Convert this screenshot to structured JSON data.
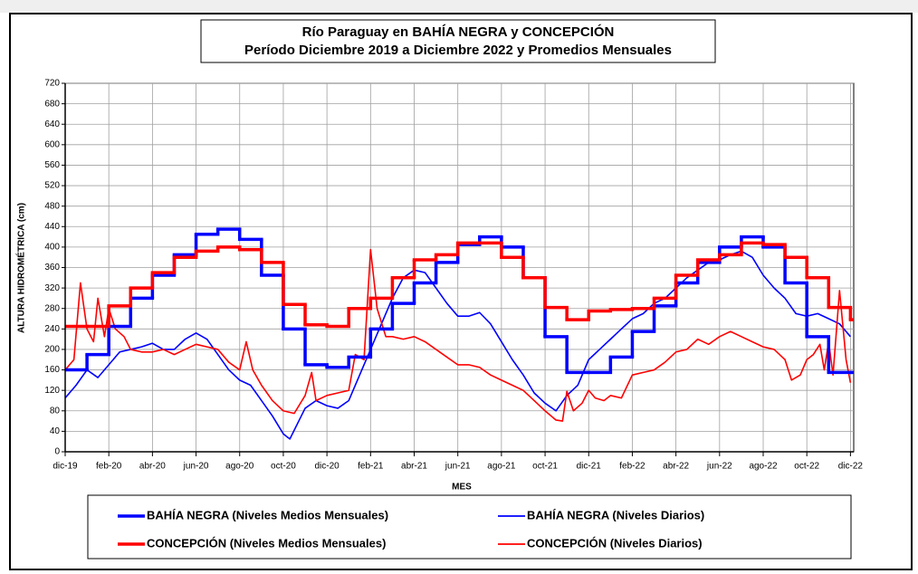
{
  "chart_data": {
    "type": "line",
    "title": "Río Paraguay en BAHÍA NEGRA y CONCEPCIÓN",
    "subtitle": "Período Diciembre 2019 a Diciembre 2022 y Promedios Mensuales",
    "x_label": "MES",
    "y_label": "ALTURA HIDROMÉTRICA (cm)",
    "xlim": [
      0,
      36.15
    ],
    "ylim": [
      0,
      720
    ],
    "xticks": [
      {
        "value": 0,
        "label": "dic-19"
      },
      {
        "value": 2,
        "label": "feb-20"
      },
      {
        "value": 4,
        "label": "abr-20"
      },
      {
        "value": 6,
        "label": "jun-20"
      },
      {
        "value": 8,
        "label": "ago-20"
      },
      {
        "value": 10,
        "label": "oct-20"
      },
      {
        "value": 12,
        "label": "dic-20"
      },
      {
        "value": 14,
        "label": "feb-21"
      },
      {
        "value": 16,
        "label": "abr-21"
      },
      {
        "value": 18,
        "label": "jun-21"
      },
      {
        "value": 20,
        "label": "ago-21"
      },
      {
        "value": 22,
        "label": "oct-21"
      },
      {
        "value": 24,
        "label": "dic-21"
      },
      {
        "value": 26,
        "label": "feb-22"
      },
      {
        "value": 28,
        "label": "abr-22"
      },
      {
        "value": 30,
        "label": "jun-22"
      },
      {
        "value": 32,
        "label": "ago-22"
      },
      {
        "value": 34,
        "label": "oct-22"
      },
      {
        "value": 36,
        "label": "dic-22"
      }
    ],
    "yticks": [
      0,
      40,
      80,
      120,
      160,
      200,
      240,
      280,
      320,
      360,
      400,
      440,
      480,
      520,
      560,
      600,
      640,
      680,
      720
    ],
    "grid": true,
    "series": [
      {
        "name": "BAHÍA NEGRA (Niveles Medios Mensuales)",
        "color": "#0000ff",
        "style": "step",
        "x": [
          0,
          1,
          2,
          3,
          4,
          5,
          6,
          7,
          8,
          9,
          10,
          11,
          12,
          13,
          14,
          15,
          16,
          17,
          18,
          19,
          20,
          21,
          22,
          23,
          24,
          25,
          26,
          27,
          28,
          29,
          30,
          31,
          32,
          33,
          34,
          35,
          36
        ],
        "values": [
          160,
          190,
          245,
          300,
          345,
          385,
          425,
          435,
          415,
          345,
          240,
          170,
          165,
          185,
          240,
          290,
          330,
          370,
          405,
          420,
          400,
          340,
          225,
          155,
          155,
          185,
          235,
          285,
          330,
          370,
          400,
          420,
          400,
          330,
          225,
          155,
          155
        ]
      },
      {
        "name": "BAHÍA NEGRA (Niveles Diarios)",
        "color": "#0000ff",
        "style": "line",
        "x": [
          0,
          0.5,
          1,
          1.5,
          2,
          2.5,
          3,
          3.5,
          4,
          4.5,
          5,
          5.5,
          6,
          6.5,
          7,
          7.5,
          8,
          8.5,
          9,
          9.5,
          10,
          10.3,
          11,
          11.5,
          12,
          12.5,
          13,
          13.5,
          14,
          14.5,
          15,
          15.5,
          16,
          16.5,
          17,
          17.5,
          18,
          18.5,
          19,
          19.5,
          20,
          20.5,
          21,
          21.5,
          22,
          22.5,
          23,
          23.5,
          24,
          24.5,
          25,
          25.5,
          26,
          26.5,
          27,
          27.5,
          28,
          28.5,
          29,
          29.5,
          30,
          30.5,
          31,
          31.5,
          32,
          32.5,
          33,
          33.5,
          34,
          34.5,
          35,
          35.5,
          36
        ],
        "values": [
          105,
          130,
          160,
          145,
          170,
          195,
          200,
          205,
          212,
          200,
          200,
          220,
          232,
          220,
          190,
          160,
          140,
          130,
          100,
          70,
          35,
          25,
          85,
          100,
          90,
          85,
          100,
          150,
          200,
          250,
          300,
          340,
          355,
          350,
          320,
          290,
          265,
          265,
          272,
          250,
          215,
          180,
          150,
          115,
          95,
          80,
          110,
          130,
          180,
          200,
          220,
          240,
          260,
          270,
          290,
          300,
          320,
          340,
          355,
          370,
          375,
          385,
          392,
          380,
          345,
          320,
          300,
          270,
          265,
          270,
          260,
          250,
          225
        ]
      },
      {
        "name": "CONCEPCIÓN (Niveles Medios Mensuales)",
        "color": "#ff0000",
        "style": "step",
        "x": [
          0,
          1,
          2,
          3,
          4,
          5,
          6,
          7,
          8,
          9,
          10,
          11,
          12,
          13,
          14,
          15,
          16,
          17,
          18,
          19,
          20,
          21,
          22,
          23,
          24,
          25,
          26,
          27,
          28,
          29,
          30,
          31,
          32,
          33,
          34,
          35,
          36
        ],
        "values": [
          245,
          245,
          285,
          320,
          350,
          380,
          392,
          400,
          395,
          370,
          288,
          248,
          245,
          280,
          300,
          340,
          375,
          385,
          408,
          408,
          380,
          340,
          282,
          258,
          275,
          278,
          280,
          300,
          345,
          375,
          385,
          408,
          405,
          380,
          340,
          282,
          258
        ]
      },
      {
        "name": "CONCEPCIÓN (Niveles Diarios)",
        "color": "#ff0000",
        "style": "line",
        "x": [
          0,
          0.4,
          0.7,
          1,
          1.3,
          1.5,
          1.8,
          2,
          2.3,
          2.7,
          3,
          3.5,
          4,
          4.5,
          5,
          5.5,
          6,
          6.5,
          7,
          7.5,
          8,
          8.3,
          8.6,
          9,
          9.5,
          10,
          10.5,
          11,
          11.3,
          11.5,
          12,
          12.5,
          13,
          13.3,
          13.7,
          14,
          14.3,
          14.7,
          15,
          15.5,
          16,
          16.5,
          17,
          17.5,
          18,
          18.5,
          19,
          19.5,
          20,
          20.5,
          21,
          21.5,
          22,
          22.5,
          22.8,
          23,
          23.3,
          23.7,
          24,
          24.3,
          24.7,
          25,
          25.5,
          26,
          26.5,
          27,
          27.5,
          28,
          28.5,
          29,
          29.5,
          30,
          30.5,
          31,
          31.5,
          32,
          32.5,
          33,
          33.3,
          33.7,
          34,
          34.3,
          34.6,
          34.8,
          35,
          35.2,
          35.5,
          35.8,
          36
        ],
        "values": [
          160,
          180,
          330,
          240,
          215,
          300,
          225,
          280,
          240,
          225,
          200,
          195,
          195,
          200,
          190,
          200,
          210,
          205,
          200,
          175,
          160,
          215,
          160,
          130,
          100,
          80,
          75,
          110,
          155,
          100,
          110,
          115,
          120,
          190,
          180,
          395,
          280,
          225,
          225,
          220,
          225,
          215,
          200,
          185,
          170,
          170,
          165,
          150,
          140,
          130,
          120,
          100,
          80,
          62,
          60,
          118,
          80,
          95,
          120,
          105,
          100,
          110,
          105,
          150,
          155,
          160,
          175,
          195,
          200,
          220,
          210,
          225,
          235,
          225,
          215,
          205,
          200,
          180,
          140,
          150,
          180,
          190,
          210,
          160,
          215,
          150,
          315,
          180,
          135
        ]
      }
    ]
  }
}
